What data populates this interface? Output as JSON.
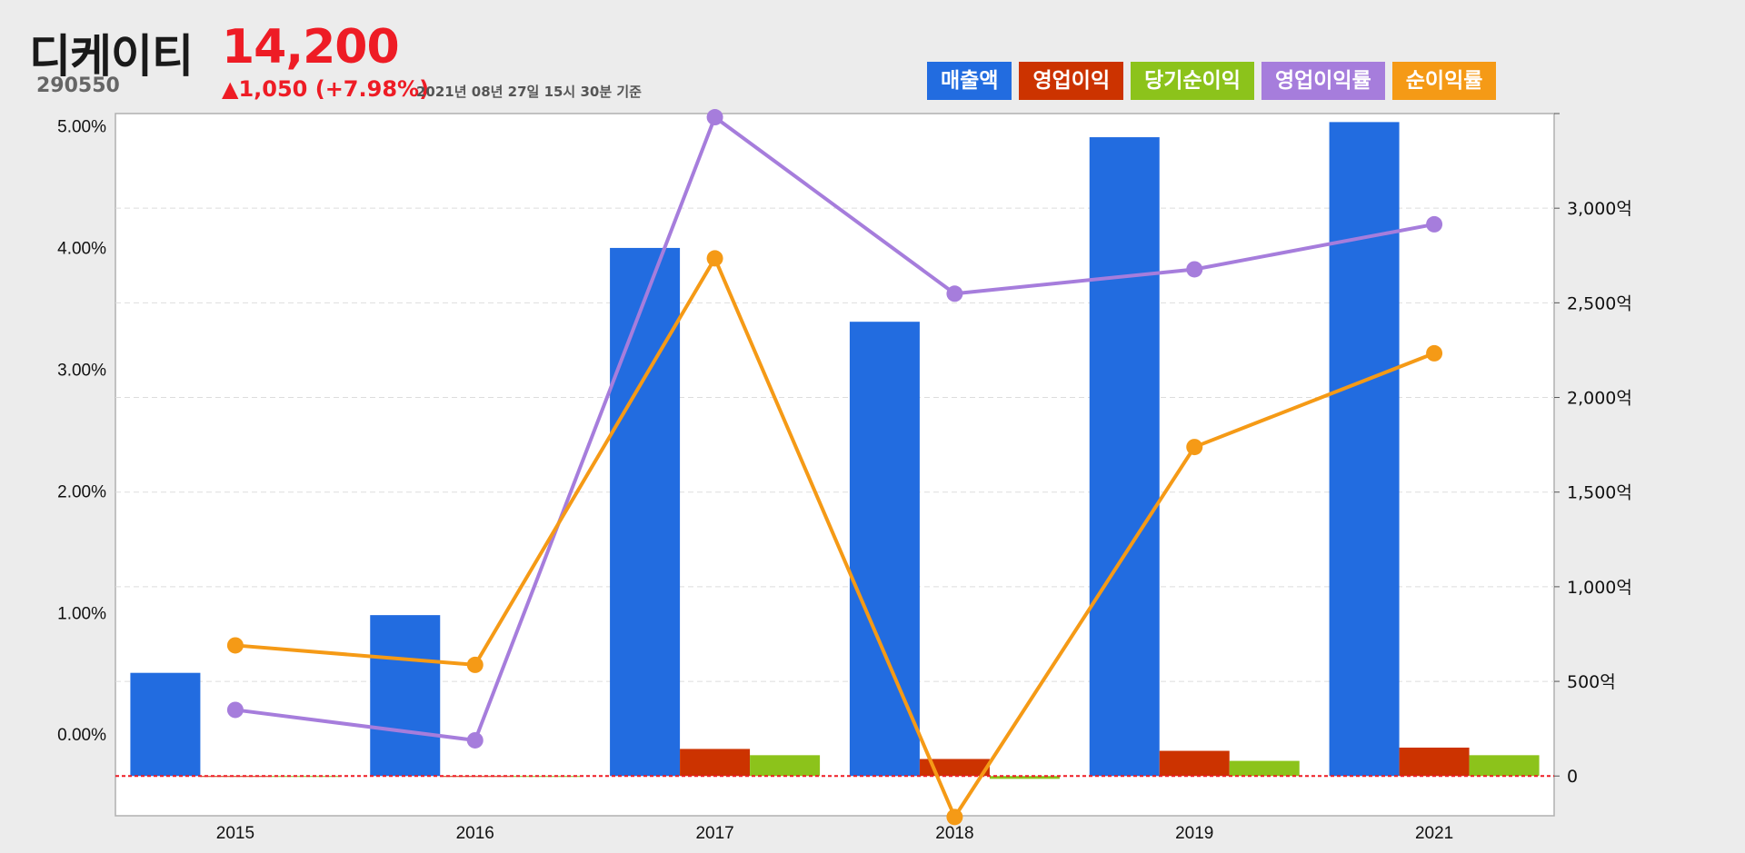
{
  "header": {
    "name": "디케이티",
    "code": "290550",
    "price": "14,200",
    "change": "▲1,050 (+7.98%)",
    "timestamp": "2021년 08년 27일 15시 30분 기준"
  },
  "colors": {
    "revenue": "#226ce0",
    "operating_profit": "#cc3300",
    "net_income": "#8cc31b",
    "op_margin": "#a67ddc",
    "net_margin": "#f59a16",
    "up": "#ee1c25"
  },
  "chart_data": {
    "type": "bar",
    "categories": [
      "2015",
      "2016",
      "2017",
      "2018",
      "2019",
      "2021"
    ],
    "series": [
      {
        "name": "매출액",
        "kind": "bar",
        "axis": "right",
        "values": [
          545,
          850,
          2790,
          2400,
          3375,
          3455
        ]
      },
      {
        "name": "영업이익",
        "kind": "bar",
        "axis": "right",
        "values": [
          0,
          0,
          143,
          90,
          133,
          150
        ]
      },
      {
        "name": "당기순이익",
        "kind": "bar",
        "axis": "right",
        "values": [
          0,
          0,
          110,
          -15,
          80,
          110
        ]
      },
      {
        "name": "영업이익률",
        "kind": "line",
        "axis": "left",
        "values": [
          0.2,
          -0.05,
          5.07,
          3.62,
          3.82,
          4.19
        ]
      },
      {
        "name": "순이익률",
        "kind": "line",
        "axis": "left",
        "values": [
          0.73,
          0.57,
          3.91,
          -0.68,
          2.36,
          3.13
        ]
      }
    ],
    "y_left": {
      "ticks": [
        "5.00%",
        "4.00%",
        "3.00%",
        "2.00%",
        "1.00%",
        "0.00%"
      ],
      "values": [
        5,
        4,
        3,
        2,
        1,
        0
      ],
      "range": [
        -0.67,
        5.1
      ]
    },
    "y_right": {
      "ticks": [
        "3,000억",
        "2,500억",
        "2,000억",
        "1,500억",
        "1,000억",
        "500억",
        "0"
      ],
      "values": [
        3000,
        2500,
        2000,
        1500,
        1000,
        500,
        0
      ],
      "range": [
        -210,
        3500
      ]
    },
    "grid": true,
    "zero_line": "dashed red"
  }
}
